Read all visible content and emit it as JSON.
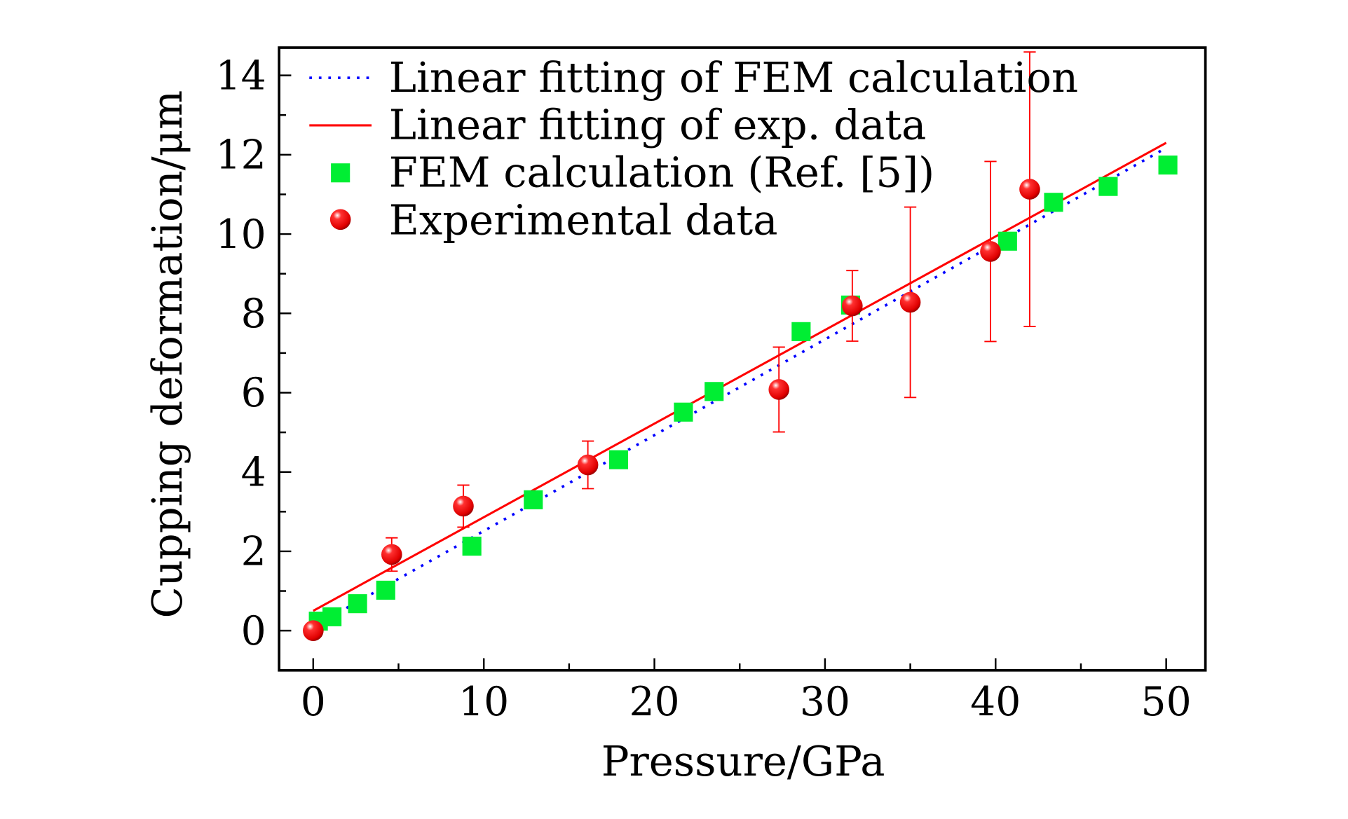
{
  "chart_data": {
    "type": "scatter",
    "title": "",
    "xlabel": "Pressure/GPa",
    "ylabel": "Cupping deformation/μm",
    "xlim": [
      -2,
      52.3
    ],
    "ylim": [
      -1,
      14.7
    ],
    "xticks": [
      0,
      10,
      20,
      30,
      40,
      50
    ],
    "yticks": [
      0,
      2,
      4,
      6,
      8,
      10,
      12,
      14
    ],
    "grid": false,
    "legend_position": "top-left",
    "colors": {
      "fem": "#00ee33",
      "exp": "#ff0000",
      "fem_fit": "#0000ff",
      "exp_fit": "#ff0000"
    },
    "series": [
      {
        "name": "Linear fitting of FEM calculation",
        "kind": "line",
        "style": "dotted",
        "x": [
          0,
          49.7
        ],
        "y": [
          0.1,
          12.1
        ]
      },
      {
        "name": "Linear fitting of exp. data",
        "kind": "line",
        "style": "solid",
        "x": [
          0,
          50
        ],
        "y": [
          0.5,
          12.3
        ]
      },
      {
        "name": "FEM calculation (Ref. [5])",
        "kind": "square",
        "x": [
          0.3,
          1.1,
          2.6,
          4.25,
          9.3,
          12.9,
          17.9,
          21.7,
          23.5,
          28.6,
          31.5,
          40.7,
          43.4,
          46.6,
          50.1
        ],
        "y": [
          0.24,
          0.35,
          0.68,
          1.02,
          2.13,
          3.3,
          4.31,
          5.51,
          6.03,
          7.54,
          8.21,
          9.82,
          10.8,
          11.2,
          11.74
        ]
      },
      {
        "name": "Experimental data",
        "kind": "sphere",
        "x": [
          0,
          4.6,
          8.8,
          16.1,
          27.3,
          31.6,
          35.0,
          39.7,
          42.0
        ],
        "y": [
          0,
          1.92,
          3.14,
          4.18,
          6.08,
          8.19,
          8.28,
          9.56,
          11.13
        ],
        "yerr": [
          0,
          0.42,
          0.53,
          0.6,
          1.07,
          0.89,
          2.4,
          2.27,
          3.46
        ]
      }
    ]
  }
}
